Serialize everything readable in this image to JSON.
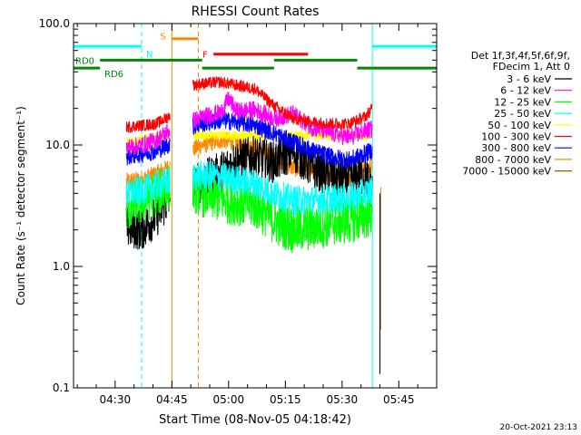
{
  "chart_data": {
    "type": "line",
    "title": "RHESSI Count Rates",
    "xlabel": "Start Time (08-Nov-05 04:18:42)",
    "ylabel": "Count Rate (s⁻¹ detector segment⁻¹)",
    "y_scale": "log",
    "ylim": [
      0.1,
      100.0
    ],
    "xlim": [
      "04:19",
      "05:55"
    ],
    "x_ticks": [
      "04:30",
      "04:45",
      "05:00",
      "05:15",
      "05:30",
      "05:45"
    ],
    "y_ticks": [
      "0.1",
      "1.0",
      "10.0",
      "100.0"
    ],
    "legend": {
      "placement": "right",
      "header": [
        "Det 1f,3f,4f,5f,6f,9f,",
        "FDecim 1, Att 0"
      ]
    },
    "series": [
      {
        "name": "3 - 6 keV",
        "color": "#000000",
        "x": [
          "04:33",
          "04:37",
          "04:41",
          "04:44",
          "04:50",
          "04:53",
          "04:58",
          "05:02",
          "05:07",
          "05:12",
          "05:17",
          "05:22",
          "05:27",
          "05:32",
          "05:36",
          "05:38"
        ],
        "y": [
          2.1,
          2.0,
          2.6,
          3.5,
          4.5,
          5.0,
          6.0,
          7.5,
          8.0,
          7.2,
          9.0,
          6.5,
          5.6,
          5.2,
          5.8,
          4.2
        ]
      },
      {
        "name": "6 - 12 keV",
        "color": "#ff00ff",
        "x": [
          "04:33",
          "04:37",
          "04:41",
          "04:44",
          "04:50",
          "04:53",
          "04:58",
          "05:00",
          "05:02",
          "05:07",
          "05:12",
          "05:17",
          "05:22",
          "05:27",
          "05:32",
          "05:36",
          "05:38"
        ],
        "y": [
          9.5,
          10.0,
          11.0,
          13.0,
          15.5,
          17.0,
          18.5,
          24.0,
          19.0,
          19.5,
          16.5,
          18.0,
          14.0,
          12.5,
          11.5,
          13.0,
          13.5
        ]
      },
      {
        "name": "12 - 25 keV",
        "color": "#00ff00",
        "x": [
          "04:33",
          "04:37",
          "04:41",
          "04:44",
          "04:50",
          "04:53",
          "04:58",
          "05:02",
          "05:07",
          "05:12",
          "05:17",
          "05:22",
          "05:27",
          "05:32",
          "05:36",
          "05:38"
        ],
        "y": [
          3.0,
          3.5,
          4.0,
          4.5,
          4.5,
          4.0,
          3.6,
          3.4,
          3.2,
          2.4,
          2.0,
          2.1,
          2.3,
          2.4,
          2.6,
          2.8
        ]
      },
      {
        "name": "25 - 50 keV",
        "color": "#00ffff",
        "x": [
          "04:33",
          "04:37",
          "04:41",
          "04:44",
          "04:50",
          "04:53",
          "04:58",
          "05:02",
          "05:07",
          "05:12",
          "05:17",
          "05:22",
          "05:27",
          "05:32",
          "05:36",
          "05:38"
        ],
        "y": [
          4.0,
          4.2,
          4.6,
          5.0,
          5.5,
          5.6,
          5.5,
          5.2,
          4.8,
          4.0,
          3.5,
          3.5,
          3.6,
          3.7,
          4.0,
          4.2
        ]
      },
      {
        "name": "50 - 100 keV",
        "color": "#ffff00",
        "x": [
          "04:33",
          "04:44",
          "04:50",
          "05:36",
          "05:38"
        ],
        "y": [
          10.5,
          12.0,
          12.0,
          12.0,
          12.5
        ]
      },
      {
        "name": "100 - 300 keV",
        "color": "#ff0000",
        "x": [
          "04:33",
          "04:37",
          "04:41",
          "04:44",
          "04:50",
          "04:53",
          "04:58",
          "05:02",
          "05:07",
          "05:12",
          "05:17",
          "05:22",
          "05:27",
          "05:32",
          "05:36",
          "05:38"
        ],
        "y": [
          14.0,
          14.5,
          15.0,
          17.0,
          31.0,
          32.0,
          33.0,
          31.0,
          29.0,
          21.0,
          16.5,
          15.5,
          15.0,
          15.0,
          17.0,
          20.0
        ]
      },
      {
        "name": "300 - 800 keV",
        "color": "#0000ff",
        "x": [
          "04:33",
          "04:37",
          "04:41",
          "04:44",
          "04:50",
          "04:53",
          "04:58",
          "05:02",
          "05:07",
          "05:12",
          "05:17",
          "05:22",
          "05:27",
          "05:32",
          "05:36",
          "05:38"
        ],
        "y": [
          8.0,
          8.5,
          9.0,
          10.0,
          14.0,
          15.0,
          16.0,
          15.5,
          14.5,
          12.5,
          10.5,
          9.0,
          8.0,
          7.5,
          8.5,
          9.0
        ]
      },
      {
        "name": "800 - 7000 keV",
        "color": "#ff8800",
        "x": [
          "04:33",
          "04:37",
          "04:41",
          "04:44",
          "04:50",
          "04:53",
          "04:58",
          "05:02",
          "05:07",
          "05:12",
          "05:17",
          "05:22",
          "05:27",
          "05:32",
          "05:36",
          "05:38"
        ],
        "y": [
          5.0,
          5.2,
          5.8,
          6.5,
          9.0,
          10.0,
          11.0,
          10.5,
          9.5,
          8.0,
          6.5,
          6.0,
          5.8,
          5.6,
          6.2,
          6.8
        ]
      },
      {
        "name": "7000 - 15000 keV",
        "color": "#886600",
        "x": [],
        "y": []
      }
    ],
    "annotations": {
      "flags": [
        {
          "label": "N",
          "color": "#00ffff",
          "segments": [
            [
              "04:19",
              "04:37"
            ],
            [
              "05:38",
              "05:55"
            ]
          ],
          "y": 65.0
        },
        {
          "label": "S",
          "color": "#ff8800",
          "segments": [
            [
              "04:45",
              "04:52"
            ]
          ],
          "y": 75.0
        },
        {
          "label": "F",
          "color": "#ff0000",
          "segments": [
            [
              "04:56",
              "05:21"
            ]
          ],
          "y": 56.0
        },
        {
          "label": "RD0",
          "color": "#008800",
          "segments": [
            [
              "04:26",
              "04:53"
            ],
            [
              "05:12",
              "05:34"
            ]
          ],
          "y": 50.0
        },
        {
          "label": "RD6",
          "color": "#008800",
          "segments": [
            [
              "04:19",
              "04:26"
            ],
            [
              "04:53",
              "05:12"
            ],
            [
              "05:34",
              "05:55"
            ]
          ],
          "y": 43.0
        }
      ],
      "vertical_lines": [
        {
          "x": "04:19",
          "color": "#00ffff",
          "style": "solid"
        },
        {
          "x": "04:37",
          "color": "#00ffff",
          "style": "dashed"
        },
        {
          "x": "04:45",
          "color": "#ff8800",
          "style": "solid"
        },
        {
          "x": "04:52",
          "color": "#ff8800",
          "style": "dashed"
        },
        {
          "x": "05:38",
          "color": "#00ffff",
          "style": "solid"
        },
        {
          "x": "05:55",
          "color": "#00ffff",
          "style": "dashed"
        }
      ]
    },
    "footer": "20-Oct-2021 23:13"
  }
}
